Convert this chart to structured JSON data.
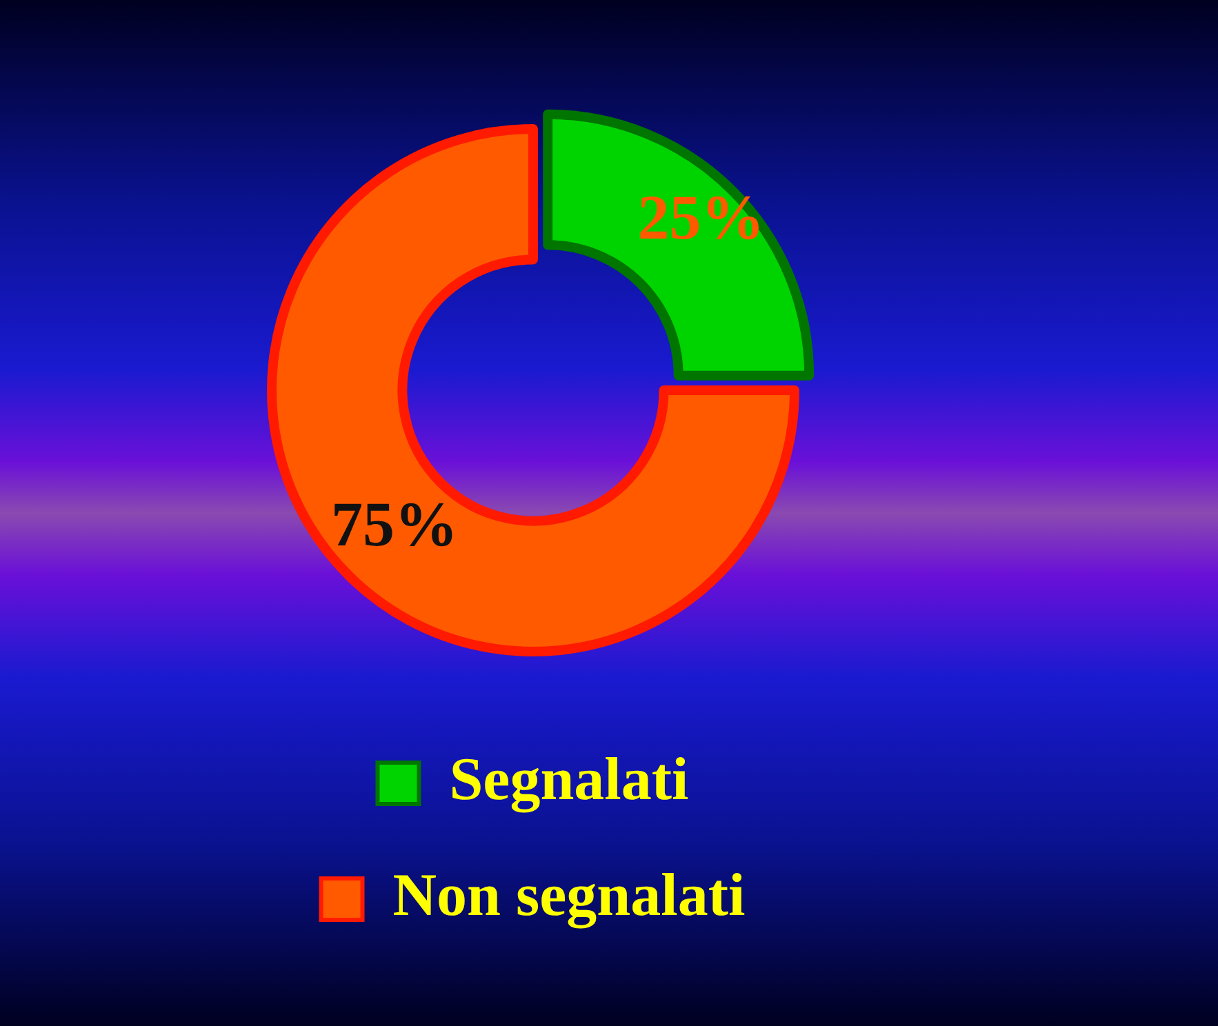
{
  "chart_data": {
    "type": "donut",
    "categories": [
      "Segnalati",
      "Non segnalati"
    ],
    "values": [
      25,
      75
    ],
    "colors": [
      "#00d400",
      "#ff5a00"
    ],
    "value_labels": [
      "25%",
      "75%"
    ],
    "legend": "bottom"
  }
}
